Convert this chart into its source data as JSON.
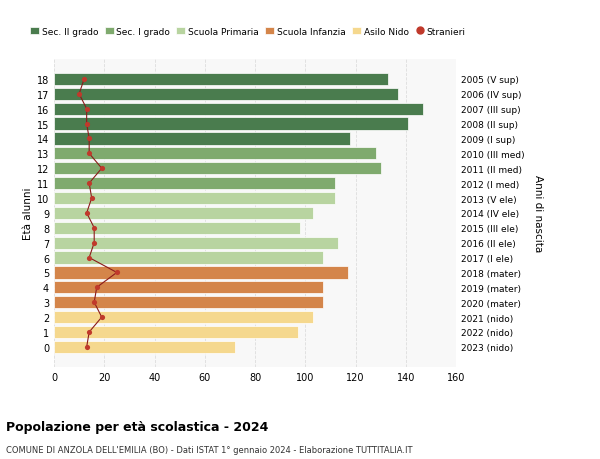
{
  "ages": [
    18,
    17,
    16,
    15,
    14,
    13,
    12,
    11,
    10,
    9,
    8,
    7,
    6,
    5,
    4,
    3,
    2,
    1,
    0
  ],
  "years": [
    "2005 (V sup)",
    "2006 (IV sup)",
    "2007 (III sup)",
    "2008 (II sup)",
    "2009 (I sup)",
    "2010 (III med)",
    "2011 (II med)",
    "2012 (I med)",
    "2013 (V ele)",
    "2014 (IV ele)",
    "2015 (III ele)",
    "2016 (II ele)",
    "2017 (I ele)",
    "2018 (mater)",
    "2019 (mater)",
    "2020 (mater)",
    "2021 (nido)",
    "2022 (nido)",
    "2023 (nido)"
  ],
  "bar_values": [
    133,
    137,
    147,
    141,
    118,
    128,
    130,
    112,
    112,
    103,
    98,
    113,
    107,
    117,
    107,
    107,
    103,
    97,
    72
  ],
  "bar_colors": [
    "#4a7c4e",
    "#4a7c4e",
    "#4a7c4e",
    "#4a7c4e",
    "#4a7c4e",
    "#7faa6e",
    "#7faa6e",
    "#7faa6e",
    "#b8d4a0",
    "#b8d4a0",
    "#b8d4a0",
    "#b8d4a0",
    "#b8d4a0",
    "#d4854a",
    "#d4854a",
    "#d4854a",
    "#f5d88e",
    "#f5d88e",
    "#f5d88e"
  ],
  "stranieri_values": [
    12,
    10,
    13,
    13,
    14,
    14,
    19,
    14,
    15,
    13,
    16,
    16,
    14,
    25,
    17,
    16,
    19,
    14,
    13
  ],
  "xlim": [
    0,
    160
  ],
  "xticks": [
    0,
    20,
    40,
    60,
    80,
    100,
    120,
    140,
    160
  ],
  "legend_labels": [
    "Sec. II grado",
    "Sec. I grado",
    "Scuola Primaria",
    "Scuola Infanzia",
    "Asilo Nido",
    "Stranieri"
  ],
  "legend_colors": [
    "#4a7c4e",
    "#7faa6e",
    "#b8d4a0",
    "#d4854a",
    "#f5d88e",
    "#a02020"
  ],
  "ylabel_left": "Età alunni",
  "ylabel_right": "Anni di nascita",
  "title": "Popolazione per età scolastica - 2024",
  "subtitle": "COMUNE DI ANZOLA DELL'EMILIA (BO) - Dati ISTAT 1° gennaio 2024 - Elaborazione TUTTITALIA.IT",
  "background_color": "#ffffff",
  "plot_bg_color": "#f8f8f8",
  "grid_color": "#dddddd",
  "bar_height": 0.82
}
